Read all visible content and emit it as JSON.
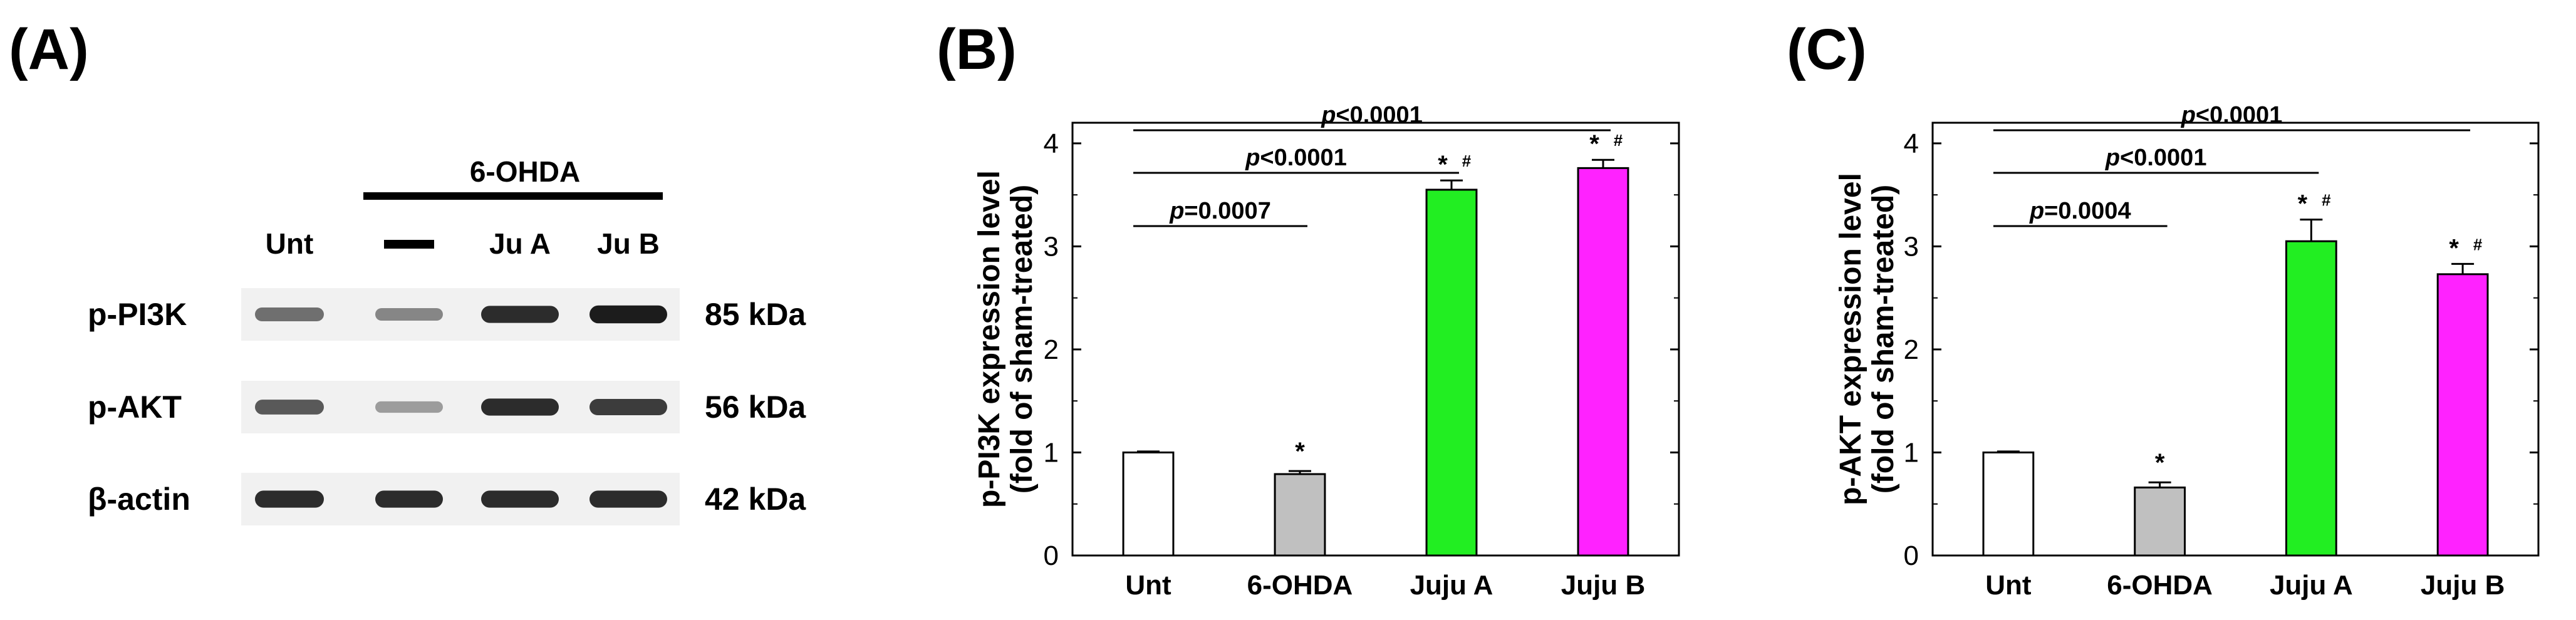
{
  "panels": {
    "a_label": "(A)",
    "b_label": "(B)",
    "c_label": "(C)"
  },
  "blot": {
    "treatment": "6-OHDA",
    "lanes": [
      "Unt",
      "—",
      "Ju A",
      "Ju B"
    ],
    "proteins": [
      "p-PI3K",
      "p-AKT",
      "β-actin"
    ],
    "sizes": [
      "85 kDa",
      "56 kDa",
      "42 kDa"
    ],
    "band_intensity": [
      [
        0.55,
        0.45,
        0.85,
        0.92
      ],
      [
        0.65,
        0.35,
        0.85,
        0.78
      ],
      [
        0.85,
        0.85,
        0.85,
        0.85
      ]
    ]
  },
  "colors": {
    "bars": [
      "#ffffff",
      "#c0c0c0",
      "#22ee22",
      "#ff22ff"
    ]
  },
  "chart_data": [
    {
      "type": "bar",
      "categories": [
        "Unt",
        "6-OHDA",
        "Juju A",
        "Juju B"
      ],
      "values": [
        1.0,
        0.79,
        3.55,
        3.76
      ],
      "errors": [
        0.01,
        0.03,
        0.09,
        0.08
      ],
      "ylabel_line1": "p-PI3K expression level",
      "ylabel_line2": "(fold of sham-treated)",
      "ylim": [
        0,
        4.2
      ],
      "yticks": [
        "0",
        "1",
        "2",
        "3",
        "4"
      ],
      "bar_marks": [
        "",
        "*",
        "* #",
        "* #"
      ],
      "comparisons": [
        {
          "label_p": "p",
          "label_rest": "=0.0007",
          "from": 0,
          "to": 1,
          "level": 1
        },
        {
          "label_p": "p",
          "label_rest": "<0.0001",
          "from": 0,
          "to": 2,
          "level": 2
        },
        {
          "label_p": "p",
          "label_rest": "<0.0001",
          "from": 0,
          "to": 3,
          "level": 3
        }
      ]
    },
    {
      "type": "bar",
      "categories": [
        "Unt",
        "6-OHDA",
        "Juju A",
        "Juju B"
      ],
      "values": [
        1.0,
        0.66,
        3.05,
        2.73
      ],
      "errors": [
        0.01,
        0.05,
        0.21,
        0.1
      ],
      "ylabel_line1": "p-AKT expression level",
      "ylabel_line2": "(fold of sham-treated)",
      "ylim": [
        0,
        4.2
      ],
      "yticks": [
        "0",
        "1",
        "2",
        "3",
        "4"
      ],
      "bar_marks": [
        "",
        "*",
        "* #",
        "* #"
      ],
      "comparisons": [
        {
          "label_p": "p",
          "label_rest": "=0.0004",
          "from": 0,
          "to": 1,
          "level": 1
        },
        {
          "label_p": "p",
          "label_rest": "<0.0001",
          "from": 0,
          "to": 2,
          "level": 2
        },
        {
          "label_p": "p",
          "label_rest": "<0.0001",
          "from": 0,
          "to": 3,
          "level": 3
        }
      ]
    }
  ]
}
